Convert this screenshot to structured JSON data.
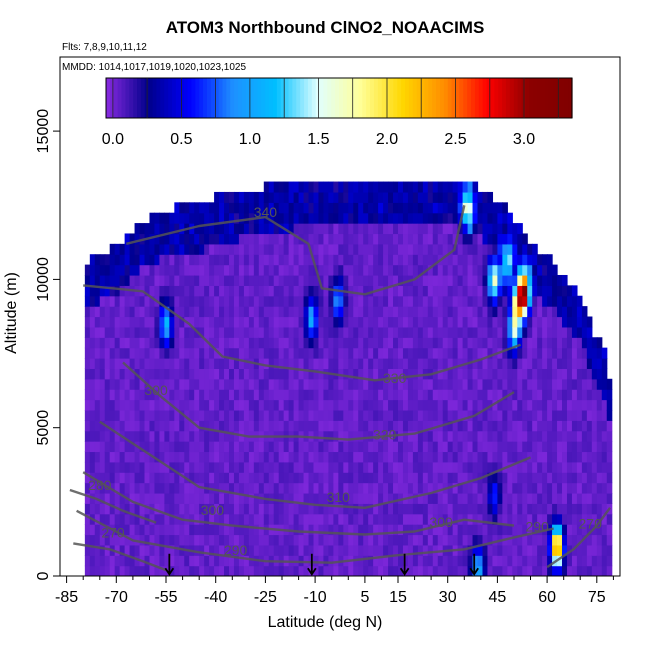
{
  "chart_data": {
    "type": "heatmap",
    "title": "ATOM3 Northbound ClNO2_NOAACIMS",
    "annotations": [
      "Flts: 7,8,9,10,11,12",
      "MMDD: 1014,1017,1019,1020,1023,1025"
    ],
    "xlabel": "Latitude (deg N)",
    "ylabel": "Altitude (m)",
    "xlim": [
      -87,
      82
    ],
    "ylim": [
      0,
      17500
    ],
    "x_ticks": [
      "-85",
      "-70",
      "-55",
      "-40",
      "-25",
      "-10",
      "5",
      "15",
      "30",
      "45",
      "60",
      "75"
    ],
    "y_ticks": [
      "0",
      "5000",
      "10000",
      "15000"
    ],
    "colorbar": {
      "ticks": [
        "0.0",
        "0.5",
        "1.0",
        "1.5",
        "2.0",
        "2.5",
        "3.0"
      ],
      "range": [
        -0.05,
        3.35
      ],
      "colors": [
        "#8a2be2",
        "#00008b",
        "#0000ff",
        "#1e90ff",
        "#00bfff",
        "#e0ffff",
        "#ffff99",
        "#ffd700",
        "#ff8c00",
        "#ff0000",
        "#8b0000",
        "#800000"
      ]
    },
    "contour_labels": [
      {
        "text": "340",
        "lat": -25,
        "alt": 12100
      },
      {
        "text": "330",
        "lat": 14,
        "alt": 6500
      },
      {
        "text": "320",
        "lat": 11,
        "alt": 4600
      },
      {
        "text": "310",
        "lat": -3,
        "alt": 2500
      },
      {
        "text": "300",
        "lat": -41,
        "alt": 2050
      },
      {
        "text": "300",
        "lat": -58,
        "alt": 6100
      },
      {
        "text": "300",
        "lat": 28,
        "alt": 1650
      },
      {
        "text": "290",
        "lat": -34,
        "alt": 700
      },
      {
        "text": "290",
        "lat": 57,
        "alt": 1500
      },
      {
        "text": "280",
        "lat": -75,
        "alt": 2900
      },
      {
        "text": "270",
        "lat": -71,
        "alt": 1300
      },
      {
        "text": "270",
        "lat": 73,
        "alt": 1600
      }
    ],
    "arrows_lat": [
      -54,
      -11,
      17,
      38
    ],
    "profile_tops": [
      [
        -80,
        10400
      ],
      [
        -75,
        10700
      ],
      [
        -70,
        11000
      ],
      [
        -62,
        11800
      ],
      [
        -55,
        12200
      ],
      [
        -45,
        12400
      ],
      [
        -38,
        12700
      ],
      [
        -28,
        12900
      ],
      [
        -15,
        13200
      ],
      [
        -5,
        13300
      ],
      [
        5,
        13300
      ],
      [
        15,
        13300
      ],
      [
        25,
        13300
      ],
      [
        35,
        13300
      ],
      [
        40,
        12800
      ],
      [
        47,
        12300
      ],
      [
        52,
        11600
      ],
      [
        56,
        11000
      ],
      [
        62,
        10400
      ],
      [
        66,
        9800
      ],
      [
        70,
        9400
      ],
      [
        74,
        8000
      ],
      [
        77,
        7600
      ],
      [
        79,
        6500
      ]
    ],
    "hotspots": [
      {
        "lat": -55,
        "alt": 8500,
        "value": 1.1
      },
      {
        "lat": -11,
        "alt": 8700,
        "value": 1.0
      },
      {
        "lat": -3,
        "alt": 9300,
        "value": 0.9
      },
      {
        "lat": 36,
        "alt": 12400,
        "value": 1.4
      },
      {
        "lat": 44,
        "alt": 10000,
        "value": 1.6
      },
      {
        "lat": 48,
        "alt": 10500,
        "value": 1.3
      },
      {
        "lat": 53,
        "alt": 9600,
        "value": 3.1
      },
      {
        "lat": 51,
        "alt": 9100,
        "value": 1.7
      },
      {
        "lat": 50,
        "alt": 8200,
        "value": 1.2
      },
      {
        "lat": 63,
        "alt": 1000,
        "value": 2.6
      },
      {
        "lat": 39,
        "alt": 300,
        "value": 1.1
      },
      {
        "lat": 44,
        "alt": 2700,
        "value": 0.6
      }
    ]
  }
}
